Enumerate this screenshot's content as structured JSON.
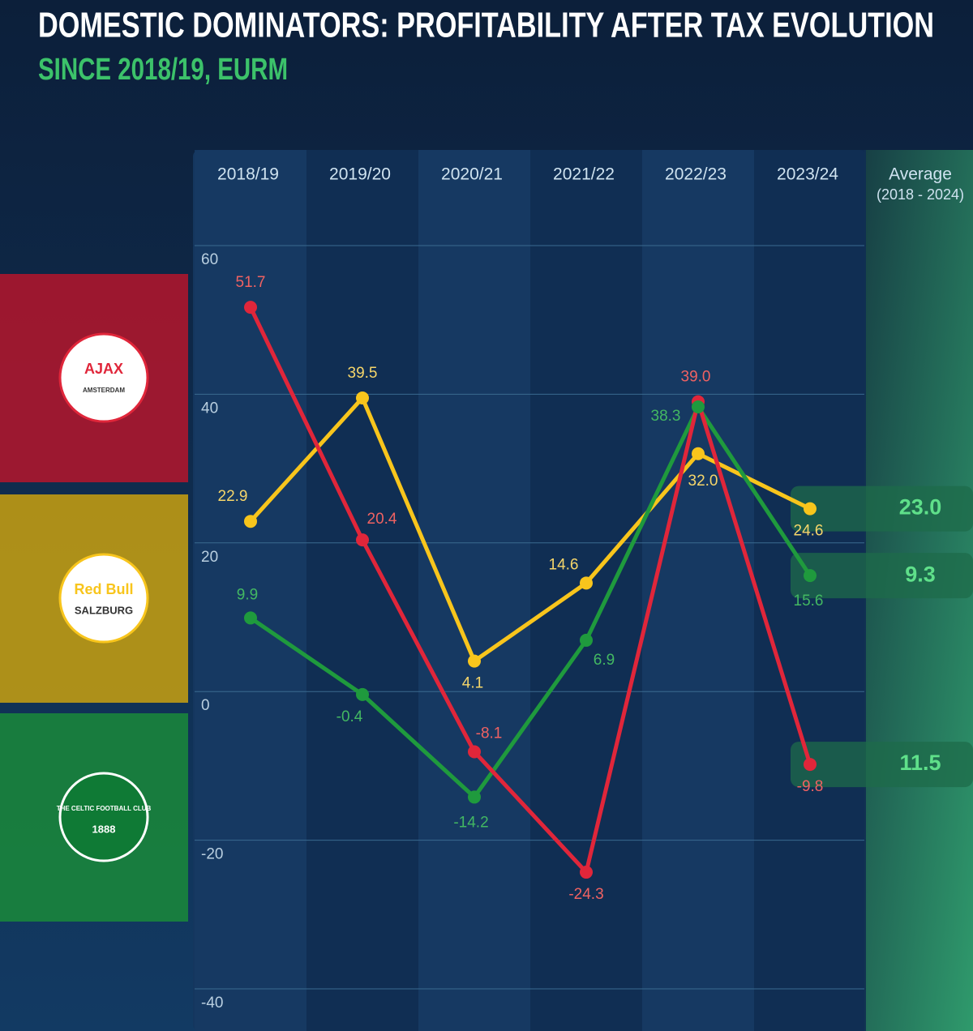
{
  "chart_data": {
    "type": "line",
    "title": "DOMESTIC DOMINATORS: PROFITABILITY AFTER TAX EVOLUTION",
    "subtitle": "SINCE 2018/19, EURM",
    "categories": [
      "2018/19",
      "2019/20",
      "2020/21",
      "2021/22",
      "2022/23",
      "2023/24"
    ],
    "average_title": "Average",
    "average_period": "(2018 - 2024)",
    "ylim": [
      -40,
      60
    ],
    "yticks": [
      -40,
      -20,
      0,
      20,
      40,
      60
    ],
    "grid": true,
    "series": [
      {
        "name": "AJAX",
        "logo_subtext": "AMSTERDAM",
        "color": "#e0263a",
        "label_color": "#f06262",
        "band_color": "#b5152b",
        "values": [
          51.7,
          20.4,
          -8.1,
          -24.3,
          39.0,
          -9.8
        ],
        "value_labels": [
          "51.7",
          "20.4",
          "-8.1",
          "-24.3",
          "39.0",
          "-9.8"
        ],
        "average": 11.5,
        "average_label": "11.5"
      },
      {
        "name": "Red Bull",
        "logo_subtext": "SALZBURG",
        "color": "#f8c51c",
        "label_color": "#f6d66a",
        "band_color": "#c9a10f",
        "values": [
          22.9,
          39.5,
          4.1,
          14.6,
          32.0,
          24.6
        ],
        "value_labels": [
          "22.9",
          "39.5",
          "4.1",
          "14.6",
          "32.0",
          "24.6"
        ],
        "average": 23.0,
        "average_label": "23.0"
      },
      {
        "name": "THE CELTIC FOOTBALL CLUB",
        "logo_subtext": "1888",
        "color": "#1f9a3d",
        "label_color": "#43b862",
        "band_color": "#1a8a3a",
        "values": [
          9.9,
          -0.4,
          -14.2,
          6.9,
          38.3,
          15.6
        ],
        "value_labels": [
          "9.9",
          "-0.4",
          "-14.2",
          "6.9",
          "38.3",
          "15.6"
        ],
        "average": 9.3,
        "average_label": "9.3"
      }
    ]
  }
}
